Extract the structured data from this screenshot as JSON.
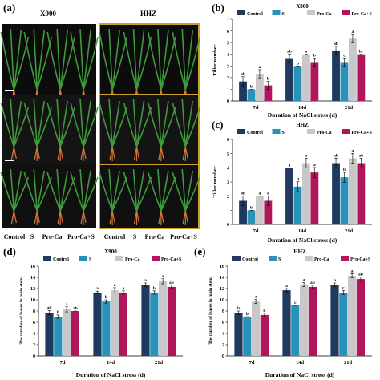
{
  "panels": {
    "a": "(a)",
    "b": "(b)",
    "c": "(c)",
    "d": "(d)",
    "e": "(e)"
  },
  "photo": {
    "variety_left": "X900",
    "variety_right": "HHZ",
    "treatments": [
      "Control",
      "S",
      "Pro-Ca",
      "Pro-Ca+S",
      "Control",
      "S",
      "Pro-Ca",
      "Pro-Ca+S"
    ]
  },
  "colors": {
    "Control": "#1f3a5f",
    "S": "#2a91b8",
    "Pro-Ca": "#c8c8c8",
    "Pro-Ca+S": "#b0165a"
  },
  "chart_data": [
    {
      "id": "b",
      "type": "bar",
      "title": "X900",
      "xlabel": "Duration of NaCl stress (d)",
      "ylabel": "Tiller number",
      "categories": [
        "7d",
        "14d",
        "21d"
      ],
      "ylim": [
        0,
        7
      ],
      "yticks": [
        0,
        1,
        2,
        3,
        4,
        5,
        6,
        7
      ],
      "legend_position": "top",
      "series": [
        {
          "name": "Control",
          "values": [
            1.67,
            3.67,
            4.33
          ],
          "errors": [
            0.4,
            0.35,
            0.35
          ],
          "letters": [
            "ab",
            "ab",
            "ab"
          ]
        },
        {
          "name": "S",
          "values": [
            1.0,
            3.0,
            3.33
          ],
          "errors": [
            0.0,
            0.0,
            0.35
          ],
          "letters": [
            "b",
            "b",
            "c"
          ]
        },
        {
          "name": "Pro-Ca",
          "values": [
            2.33,
            4.0,
            5.33
          ],
          "errors": [
            0.35,
            0.0,
            0.35
          ],
          "letters": [
            "a",
            "a",
            "a"
          ]
        },
        {
          "name": "Pro-Ca+S",
          "values": [
            1.33,
            3.33,
            4.0
          ],
          "errors": [
            0.35,
            0.35,
            0.0
          ],
          "letters": [
            "b",
            "b",
            "bc"
          ]
        }
      ]
    },
    {
      "id": "c",
      "type": "bar",
      "title": "HHZ",
      "xlabel": "Duration of NaCl stress (d)",
      "ylabel": "Tiller number",
      "categories": [
        "7d",
        "14d",
        "21d"
      ],
      "ylim": [
        0,
        6
      ],
      "yticks": [
        0,
        1,
        2,
        3,
        4,
        5,
        6
      ],
      "legend_position": "top",
      "series": [
        {
          "name": "Control",
          "values": [
            1.67,
            4.0,
            4.33
          ],
          "errors": [
            0.35,
            0.0,
            0.35
          ],
          "letters": [
            "ab",
            "a",
            "ab"
          ]
        },
        {
          "name": "S",
          "values": [
            1.0,
            2.67,
            3.33
          ],
          "errors": [
            0.0,
            0.35,
            0.35
          ],
          "letters": [
            "b",
            "b",
            "b"
          ]
        },
        {
          "name": "Pro-Ca",
          "values": [
            2.0,
            4.33,
            4.67
          ],
          "errors": [
            0.0,
            0.35,
            0.35
          ],
          "letters": [
            "a",
            "a",
            "a"
          ]
        },
        {
          "name": "Pro-Ca+S",
          "values": [
            1.67,
            3.67,
            4.33
          ],
          "errors": [
            0.35,
            0.35,
            0.35
          ],
          "letters": [
            "a",
            "a",
            "ab"
          ]
        }
      ]
    },
    {
      "id": "d",
      "type": "bar",
      "title": "X900",
      "xlabel": "Duration of NaCl stress (d)",
      "ylabel": "The number of leaves in main stem",
      "categories": [
        "7d",
        "14d",
        "21d"
      ],
      "ylim": [
        0,
        16
      ],
      "yticks": [
        0,
        2,
        4,
        6,
        8,
        10,
        12,
        14,
        16
      ],
      "legend_position": "top",
      "series": [
        {
          "name": "Control",
          "values": [
            7.7,
            11.3,
            12.7
          ],
          "errors": [
            0.35,
            0.25,
            0.3
          ],
          "letters": [
            "ab",
            "a",
            "a"
          ]
        },
        {
          "name": "S",
          "values": [
            7.0,
            9.7,
            11.3
          ],
          "errors": [
            0.3,
            0.3,
            0.3
          ],
          "letters": [
            "b",
            "b",
            "b"
          ]
        },
        {
          "name": "Pro-Ca",
          "values": [
            8.3,
            11.7,
            13.3
          ],
          "errors": [
            0.45,
            0.45,
            0.45
          ],
          "letters": [
            "a",
            "a",
            "a"
          ]
        },
        {
          "name": "Pro-Ca+S",
          "values": [
            8.0,
            11.3,
            12.3
          ],
          "errors": [
            0.0,
            0.3,
            0.3
          ],
          "letters": [
            "ab",
            "a",
            "ab"
          ]
        }
      ]
    },
    {
      "id": "e",
      "type": "bar",
      "title": "HHZ",
      "xlabel": "Duration of NaCl stress (d)",
      "ylabel": "The number of leaves in main stem",
      "categories": [
        "7d",
        "14d",
        "21d"
      ],
      "ylim": [
        0,
        16
      ],
      "yticks": [
        0,
        2,
        4,
        6,
        8,
        10,
        12,
        14,
        16
      ],
      "legend_position": "top",
      "series": [
        {
          "name": "Control",
          "values": [
            7.7,
            11.7,
            12.7
          ],
          "errors": [
            0.3,
            0.3,
            0.3
          ],
          "letters": [
            "b",
            "a",
            "b"
          ]
        },
        {
          "name": "S",
          "values": [
            7.0,
            9.0,
            11.3
          ],
          "errors": [
            0.0,
            0.0,
            0.35
          ],
          "letters": [
            "b",
            "c",
            "c"
          ]
        },
        {
          "name": "Pro-Ca",
          "values": [
            9.7,
            12.7,
            14.3
          ],
          "errors": [
            0.35,
            0.35,
            0.35
          ],
          "letters": [
            "a",
            "a",
            "a"
          ]
        },
        {
          "name": "Pro-Ca+S",
          "values": [
            7.3,
            12.3,
            13.7
          ],
          "errors": [
            0.3,
            0.3,
            0.35
          ],
          "letters": [
            "b",
            "ab",
            "ab"
          ]
        }
      ]
    }
  ]
}
